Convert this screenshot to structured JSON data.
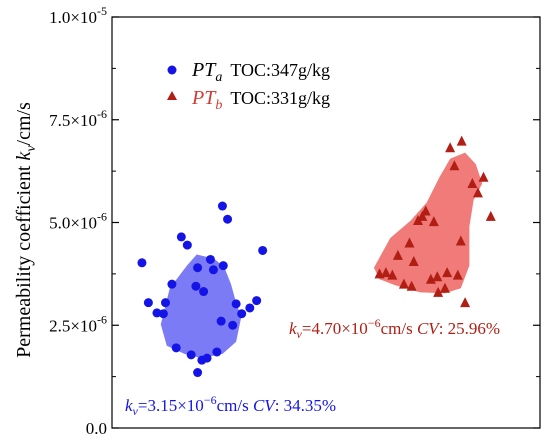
{
  "chart_data": {
    "type": "scatter",
    "ylabel": {
      "prefix": "Permeability coefficient ",
      "symbol": "k",
      "sub": "v",
      "suffix": "/cm/s"
    },
    "ylim": [
      0,
      1e-05
    ],
    "y_ticks": [
      {
        "value": 0,
        "label": "0.0"
      },
      {
        "value": 2.5e-06,
        "label": "2.5×10",
        "exp": "-6"
      },
      {
        "value": 5e-06,
        "label": "5.0×10",
        "exp": "-6"
      },
      {
        "value": 7.5e-06,
        "label": "7.5×10",
        "exp": "-6"
      },
      {
        "value": 1e-05,
        "label": "1.0×10",
        "exp": "-5"
      }
    ],
    "xlim": [
      0,
      1
    ],
    "grid": false,
    "legend_position": "top-left",
    "series": [
      {
        "name": "PTa",
        "symbol": "PT",
        "subscript": "a",
        "legend_extra": "TOC:347g/kg",
        "marker": "circle",
        "color": "#1414e6",
        "hull_color": "#7b7bf5",
        "points": [
          [
            0.07,
            4.02e-06
          ],
          [
            0.085,
            3.05e-06
          ],
          [
            0.105,
            2.8e-06
          ],
          [
            0.12,
            2.78e-06
          ],
          [
            0.125,
            3.05e-06
          ],
          [
            0.14,
            3.5e-06
          ],
          [
            0.15,
            1.95e-06
          ],
          [
            0.162,
            4.65e-06
          ],
          [
            0.176,
            4.45e-06
          ],
          [
            0.185,
            1.78e-06
          ],
          [
            0.196,
            3.45e-06
          ],
          [
            0.2,
            3.9e-06
          ],
          [
            0.21,
            1.65e-06
          ],
          [
            0.214,
            3.32e-06
          ],
          [
            0.222,
            1.7e-06
          ],
          [
            0.23,
            4.1e-06
          ],
          [
            0.237,
            3.85e-06
          ],
          [
            0.245,
            1.85e-06
          ],
          [
            0.2,
            1.35e-06
          ],
          [
            0.258,
            5.4e-06
          ],
          [
            0.27,
            5.08e-06
          ],
          [
            0.282,
            2.5e-06
          ],
          [
            0.29,
            3.02e-06
          ],
          [
            0.303,
            2.78e-06
          ],
          [
            0.322,
            2.92e-06
          ],
          [
            0.338,
            3.1e-06
          ],
          [
            0.352,
            4.32e-06
          ],
          [
            0.26,
            3.95e-06
          ],
          [
            0.255,
            2.6e-06
          ]
        ],
        "hull": [
          [
            0.175,
            3.95e-06
          ],
          [
            0.198,
            4.22e-06
          ],
          [
            0.238,
            4.12e-06
          ],
          [
            0.262,
            3.92e-06
          ],
          [
            0.278,
            3.5e-06
          ],
          [
            0.29,
            3.05e-06
          ],
          [
            0.302,
            2.7e-06
          ],
          [
            0.29,
            2.1e-06
          ],
          [
            0.258,
            1.8e-06
          ],
          [
            0.208,
            1.7e-06
          ],
          [
            0.17,
            1.8e-06
          ],
          [
            0.128,
            2e-06
          ],
          [
            0.114,
            2.52e-06
          ],
          [
            0.135,
            3.4e-06
          ]
        ]
      },
      {
        "name": "PTb",
        "symbol": "PT",
        "subscript": "b",
        "legend_extra": "TOC:331g/kg",
        "marker": "triangle",
        "color": "#b01e14",
        "hull_color": "#f07b78",
        "points": [
          [
            0.625,
            3.75e-06
          ],
          [
            0.64,
            3.78e-06
          ],
          [
            0.655,
            3.72e-06
          ],
          [
            0.668,
            4.2e-06
          ],
          [
            0.682,
            3.5e-06
          ],
          [
            0.695,
            4.5e-06
          ],
          [
            0.705,
            4.05e-06
          ],
          [
            0.715,
            5.05e-06
          ],
          [
            0.725,
            5.15e-06
          ],
          [
            0.733,
            5.28e-06
          ],
          [
            0.745,
            3.62e-06
          ],
          [
            0.752,
            5.02e-06
          ],
          [
            0.762,
            3.3e-06
          ],
          [
            0.778,
            3.4e-06
          ],
          [
            0.783,
            3.78e-06
          ],
          [
            0.79,
            6.82e-06
          ],
          [
            0.8,
            6.38e-06
          ],
          [
            0.808,
            3.72e-06
          ],
          [
            0.817,
            6.98e-06
          ],
          [
            0.825,
            3.05e-06
          ],
          [
            0.842,
            5.95e-06
          ],
          [
            0.855,
            5.72e-06
          ],
          [
            0.868,
            6.1e-06
          ],
          [
            0.885,
            5.15e-06
          ],
          [
            0.76,
            3.68e-06
          ],
          [
            0.7,
            3.45e-06
          ],
          [
            0.815,
            4.55e-06
          ]
        ],
        "hull": [
          [
            0.612,
            3.9e-06
          ],
          [
            0.65,
            4.62e-06
          ],
          [
            0.698,
            5.05e-06
          ],
          [
            0.735,
            5.48e-06
          ],
          [
            0.765,
            6.1e-06
          ],
          [
            0.79,
            6.55e-06
          ],
          [
            0.825,
            6.7e-06
          ],
          [
            0.85,
            6.42e-06
          ],
          [
            0.865,
            5.95e-06
          ],
          [
            0.845,
            5.55e-06
          ],
          [
            0.835,
            4.9e-06
          ],
          [
            0.835,
            3.95e-06
          ],
          [
            0.815,
            3.4e-06
          ],
          [
            0.778,
            3.28e-06
          ],
          [
            0.72,
            3.3e-06
          ],
          [
            0.66,
            3.48e-06
          ],
          [
            0.625,
            3.62e-06
          ]
        ]
      }
    ],
    "annotations": [
      {
        "id": "blue",
        "k": "k",
        "sub": "v",
        "value": "=3.15×10",
        "exp": "−6",
        "unit": "cm/s ",
        "cv": "CV",
        "cv_value": ": 34.35%",
        "color": "#1414e6"
      },
      {
        "id": "red",
        "k": "k",
        "sub": "v",
        "value": "=4.70×10",
        "exp": "−6",
        "unit": "cm/s ",
        "cv": "CV",
        "cv_value": ": 25.96%",
        "color": "#b01e14"
      }
    ]
  }
}
